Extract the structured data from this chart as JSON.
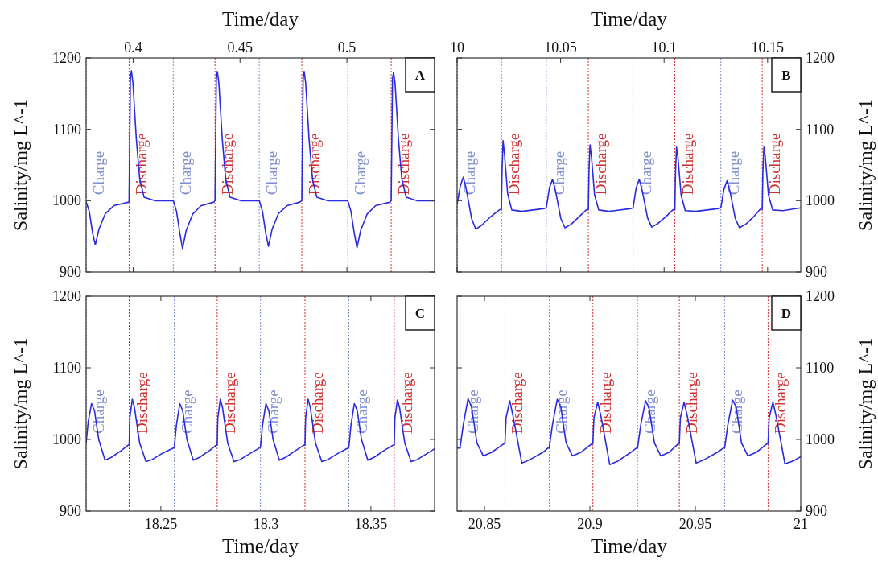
{
  "chart_data": [
    {
      "type": "line",
      "xlabel": "Time/day",
      "ylabel": "Salinity/mg L^-1",
      "xlim": [
        0.378,
        0.541
      ],
      "xticks": [
        0.4,
        0.45,
        0.5
      ],
      "ylim": [
        900,
        1200
      ],
      "yticks": [
        900,
        1000,
        1100,
        1200
      ],
      "annotations": [
        "A"
      ],
      "ref_lines": [
        {
          "axis": "x",
          "value": 0.378,
          "label": "Charge",
          "color": "#7f8fd0",
          "line_style": "dotted"
        },
        {
          "axis": "x",
          "value": 0.3981,
          "label": "Discharge",
          "color": "#d03030",
          "line_style": "dotted"
        },
        {
          "axis": "x",
          "value": 0.4188,
          "label": "Charge",
          "color": "#7f8fd0",
          "line_style": "dotted"
        },
        {
          "axis": "x",
          "value": 0.4383,
          "label": "Discharge",
          "color": "#d03030",
          "line_style": "dotted"
        },
        {
          "axis": "x",
          "value": 0.459,
          "label": "Charge",
          "color": "#7f8fd0",
          "line_style": "dotted"
        },
        {
          "axis": "x",
          "value": 0.4789,
          "label": "Discharge",
          "color": "#d03030",
          "line_style": "dotted"
        },
        {
          "axis": "x",
          "value": 0.5004,
          "label": "Charge",
          "color": "#7f8fd0",
          "line_style": "dotted"
        },
        {
          "axis": "x",
          "value": 0.5207,
          "label": "Discharge",
          "color": "#d03030",
          "line_style": "dotted"
        }
      ],
      "series": [
        {
          "color": "#2a2ae0",
          "x": [
            0.378,
            0.3795,
            0.381,
            0.3823,
            0.384,
            0.387,
            0.391,
            0.398,
            0.3981,
            0.3987,
            0.3992,
            0.3999,
            0.4015,
            0.4031,
            0.4051,
            0.4101,
            0.4188,
            0.4203,
            0.4218,
            0.4231,
            0.4248,
            0.4278,
            0.4318,
            0.4378,
            0.4383,
            0.4389,
            0.4394,
            0.4401,
            0.4417,
            0.4433,
            0.4453,
            0.4503,
            0.459,
            0.4605,
            0.462,
            0.4633,
            0.465,
            0.468,
            0.472,
            0.478,
            0.4789,
            0.4795,
            0.48,
            0.4807,
            0.4823,
            0.4839,
            0.4859,
            0.4909,
            0.5004,
            0.5019,
            0.5034,
            0.5047,
            0.5064,
            0.5094,
            0.5134,
            0.5202,
            0.5207,
            0.5213,
            0.5218,
            0.5225,
            0.5241,
            0.5257,
            0.5277,
            0.5327,
            0.541
          ],
          "values": [
            998,
            985,
            955,
            938,
            960,
            982,
            993,
            998,
            1000,
            1170,
            1182,
            1165,
            1086,
            1030,
            1005,
            1000,
            1000,
            985,
            955,
            933,
            958,
            981,
            993,
            998,
            1000,
            1170,
            1181,
            1165,
            1086,
            1030,
            1005,
            1000,
            1000,
            985,
            955,
            936,
            960,
            982,
            993,
            998,
            1000,
            1170,
            1181,
            1165,
            1086,
            1030,
            1005,
            1000,
            1000,
            985,
            955,
            934,
            958,
            981,
            993,
            998,
            1000,
            1170,
            1180,
            1165,
            1086,
            1030,
            1005,
            1000,
            1000
          ]
        }
      ]
    },
    {
      "type": "line",
      "xlabel": "Time/day",
      "y2label": "Salinity/mg L^-1",
      "xlim": [
        10,
        10.166
      ],
      "xticks": [
        10,
        10.05,
        10.1,
        10.15
      ],
      "y2lim": [
        900,
        1200
      ],
      "y2ticks": [
        900,
        1000,
        1100,
        1200
      ],
      "annotations": [
        "B"
      ],
      "ref_lines": [
        {
          "axis": "x",
          "value": 10,
          "label": "Charge",
          "color": "#7f8fd0",
          "line_style": "dotted"
        },
        {
          "axis": "x",
          "value": 10.0214,
          "label": "Discharge",
          "color": "#d03030",
          "line_style": "dotted"
        },
        {
          "axis": "x",
          "value": 10.0431,
          "label": "Charge",
          "color": "#7f8fd0",
          "line_style": "dotted"
        },
        {
          "axis": "x",
          "value": 10.0634,
          "label": "Discharge",
          "color": "#d03030",
          "line_style": "dotted"
        },
        {
          "axis": "x",
          "value": 10.085,
          "label": "Charge",
          "color": "#7f8fd0",
          "line_style": "dotted"
        },
        {
          "axis": "x",
          "value": 10.1052,
          "label": "Discharge",
          "color": "#d03030",
          "line_style": "dotted"
        },
        {
          "axis": "x",
          "value": 10.1274,
          "label": "Charge",
          "color": "#7f8fd0",
          "line_style": "dotted"
        },
        {
          "axis": "x",
          "value": 10.1474,
          "label": "Discharge",
          "color": "#d03030",
          "line_style": "dotted"
        }
      ],
      "series": [
        {
          "color": "#2a2ae0",
          "axis": "y2",
          "x": [
            10,
            10.0015,
            10.003,
            10.0045,
            10.007,
            10.009,
            10.012,
            10.016,
            10.0204,
            10.0214,
            10.0217,
            10.0222,
            10.0229,
            10.0244,
            10.0264,
            10.0314,
            10.0421,
            10.0431,
            10.0446,
            10.0461,
            10.0476,
            10.0501,
            10.0521,
            10.0551,
            10.0591,
            10.0624,
            10.0634,
            10.0637,
            10.0642,
            10.0649,
            10.0664,
            10.0684,
            10.0734,
            10.084,
            10.085,
            10.0865,
            10.088,
            10.0895,
            10.092,
            10.094,
            10.097,
            10.101,
            10.1042,
            10.1052,
            10.1055,
            10.106,
            10.1067,
            10.1082,
            10.1102,
            10.1152,
            10.1264,
            10.1274,
            10.1289,
            10.1304,
            10.1319,
            10.1344,
            10.1364,
            10.1394,
            10.1434,
            10.1464,
            10.1474,
            10.1477,
            10.1482,
            10.1489,
            10.1504,
            10.1524,
            10.1574,
            10.166
          ],
          "values": [
            995,
            1020,
            1033,
            1015,
            975,
            960,
            966,
            977,
            987,
            988,
            1040,
            1084,
            1065,
            1010,
            987,
            985,
            989,
            990,
            1018,
            1030,
            1013,
            975,
            962,
            967,
            978,
            987,
            988,
            1040,
            1078,
            1062,
            1008,
            987,
            985,
            989,
            990,
            1018,
            1030,
            1013,
            976,
            963,
            968,
            978,
            987,
            988,
            1040,
            1075,
            1060,
            1008,
            986,
            985,
            989,
            990,
            1016,
            1028,
            1012,
            975,
            962,
            967,
            978,
            988,
            988,
            1040,
            1075,
            1060,
            1008,
            987,
            986,
            990
          ]
        }
      ]
    },
    {
      "type": "line",
      "xlabel": "Time/day",
      "ylabel": "Salinity/mg L^-1",
      "xlim": [
        18.2144,
        18.3803
      ],
      "xticks": [
        18.25,
        18.3,
        18.35
      ],
      "ylim": [
        900,
        1200
      ],
      "yticks": [
        900,
        1000,
        1100,
        1200
      ],
      "annotations": [
        "C"
      ],
      "ref_lines": [
        {
          "axis": "x",
          "value": 18.2144,
          "label": "Charge",
          "color": "#7f8fd0",
          "line_style": "dotted"
        },
        {
          "axis": "x",
          "value": 18.2349,
          "label": "Discharge",
          "color": "#d03030",
          "line_style": "dotted"
        },
        {
          "axis": "x",
          "value": 18.2564,
          "label": "Charge",
          "color": "#7f8fd0",
          "line_style": "dotted"
        },
        {
          "axis": "x",
          "value": 18.2768,
          "label": "Discharge",
          "color": "#d03030",
          "line_style": "dotted"
        },
        {
          "axis": "x",
          "value": 18.2974,
          "label": "Charge",
          "color": "#7f8fd0",
          "line_style": "dotted"
        },
        {
          "axis": "x",
          "value": 18.3186,
          "label": "Discharge",
          "color": "#d03030",
          "line_style": "dotted"
        },
        {
          "axis": "x",
          "value": 18.3395,
          "label": "Charge",
          "color": "#7f8fd0",
          "line_style": "dotted"
        },
        {
          "axis": "x",
          "value": 18.3611,
          "label": "Discharge",
          "color": "#d03030",
          "line_style": "dotted"
        }
      ],
      "series": [
        {
          "color": "#2a2ae0",
          "x": [
            18.2144,
            18.2154,
            18.217,
            18.2184,
            18.2204,
            18.2234,
            18.2264,
            18.2314,
            18.2344,
            18.2349,
            18.2352,
            18.2364,
            18.2374,
            18.2399,
            18.2429,
            18.2459,
            18.2509,
            18.2559,
            18.2564,
            18.2574,
            18.259,
            18.2604,
            18.2624,
            18.2654,
            18.2684,
            18.2734,
            18.2763,
            18.2768,
            18.2771,
            18.2783,
            18.2793,
            18.2818,
            18.2848,
            18.2878,
            18.2928,
            18.2969,
            18.2974,
            18.2984,
            18.3,
            18.3014,
            18.3034,
            18.3064,
            18.3094,
            18.3144,
            18.3181,
            18.3186,
            18.3189,
            18.3201,
            18.3211,
            18.3236,
            18.3266,
            18.3296,
            18.3346,
            18.339,
            18.3395,
            18.3405,
            18.3421,
            18.3435,
            18.3455,
            18.3485,
            18.3515,
            18.3565,
            18.3606,
            18.3611,
            18.3614,
            18.3626,
            18.3636,
            18.3661,
            18.3691,
            18.3721,
            18.3771,
            18.3803
          ],
          "values": [
            995,
            1025,
            1050,
            1040,
            1000,
            971,
            975,
            985,
            992,
            992,
            1030,
            1056,
            1045,
            995,
            969,
            972,
            981,
            988,
            989,
            1020,
            1050,
            1040,
            1000,
            971,
            975,
            985,
            992,
            992,
            1030,
            1056,
            1045,
            995,
            969,
            972,
            981,
            988,
            989,
            1020,
            1050,
            1040,
            1000,
            971,
            975,
            985,
            992,
            992,
            1030,
            1056,
            1045,
            995,
            969,
            972,
            981,
            988,
            989,
            1020,
            1050,
            1040,
            1000,
            971,
            975,
            985,
            992,
            992,
            1030,
            1055,
            1045,
            995,
            969,
            972,
            981,
            987
          ]
        }
      ]
    },
    {
      "type": "line",
      "xlabel": "Time/day",
      "y2label": "Salinity/mg L^-1",
      "xlim": [
        20.837,
        21
      ],
      "xticks": [
        20.85,
        20.9,
        20.95,
        21
      ],
      "y2lim": [
        900,
        1200
      ],
      "y2ticks": [
        900,
        1000,
        1100,
        1200
      ],
      "annotations": [
        "D"
      ],
      "ref_lines": [
        {
          "axis": "x",
          "value": 20.8384,
          "label": "Charge",
          "color": "#7f8fd0",
          "line_style": "dotted"
        },
        {
          "axis": "x",
          "value": 20.8597,
          "label": "Discharge",
          "color": "#d03030",
          "line_style": "dotted"
        },
        {
          "axis": "x",
          "value": 20.8807,
          "label": "Charge",
          "color": "#7f8fd0",
          "line_style": "dotted"
        },
        {
          "axis": "x",
          "value": 20.9014,
          "label": "Discharge",
          "color": "#d03030",
          "line_style": "dotted"
        },
        {
          "axis": "x",
          "value": 20.9226,
          "label": "Charge",
          "color": "#7f8fd0",
          "line_style": "dotted"
        },
        {
          "axis": "x",
          "value": 20.9424,
          "label": "Discharge",
          "color": "#d03030",
          "line_style": "dotted"
        },
        {
          "axis": "x",
          "value": 20.9639,
          "label": "Charge",
          "color": "#7f8fd0",
          "line_style": "dotted"
        },
        {
          "axis": "x",
          "value": 20.9845,
          "label": "Discharge",
          "color": "#d03030",
          "line_style": "dotted"
        }
      ],
      "series": [
        {
          "color": "#2a2ae0",
          "axis": "y2",
          "x": [
            20.837,
            20.8384,
            20.8399,
            20.8422,
            20.8439,
            20.8464,
            20.8494,
            20.8534,
            20.8592,
            20.8597,
            20.8602,
            20.862,
            20.8637,
            20.8677,
            20.8717,
            20.8777,
            20.8802,
            20.8807,
            20.8822,
            20.8845,
            20.8862,
            20.8887,
            20.8917,
            20.8957,
            20.9009,
            20.9014,
            20.9019,
            20.9037,
            20.9054,
            20.9094,
            20.9134,
            20.9194,
            20.9221,
            20.9226,
            20.9241,
            20.9264,
            20.9281,
            20.9306,
            20.9336,
            20.9376,
            20.9419,
            20.9424,
            20.9429,
            20.9447,
            20.9464,
            20.9504,
            20.9544,
            20.9604,
            20.9634,
            20.9639,
            20.9654,
            20.9677,
            20.9694,
            20.9719,
            20.9749,
            20.9789,
            20.984,
            20.9845,
            20.985,
            20.9868,
            20.9885,
            20.9925,
            20.9965,
            21
          ],
          "values": [
            988,
            988,
            1020,
            1057,
            1045,
            995,
            977,
            982,
            994,
            994,
            1030,
            1054,
            1030,
            967,
            972,
            982,
            988,
            988,
            1020,
            1056,
            1045,
            995,
            977,
            982,
            994,
            994,
            1030,
            1052,
            1030,
            965,
            970,
            982,
            988,
            988,
            1020,
            1054,
            1043,
            995,
            977,
            982,
            994,
            994,
            1030,
            1052,
            1030,
            967,
            972,
            982,
            988,
            988,
            1020,
            1055,
            1045,
            995,
            977,
            982,
            994,
            994,
            1030,
            1052,
            1030,
            966,
            970,
            976
          ]
        }
      ]
    }
  ]
}
